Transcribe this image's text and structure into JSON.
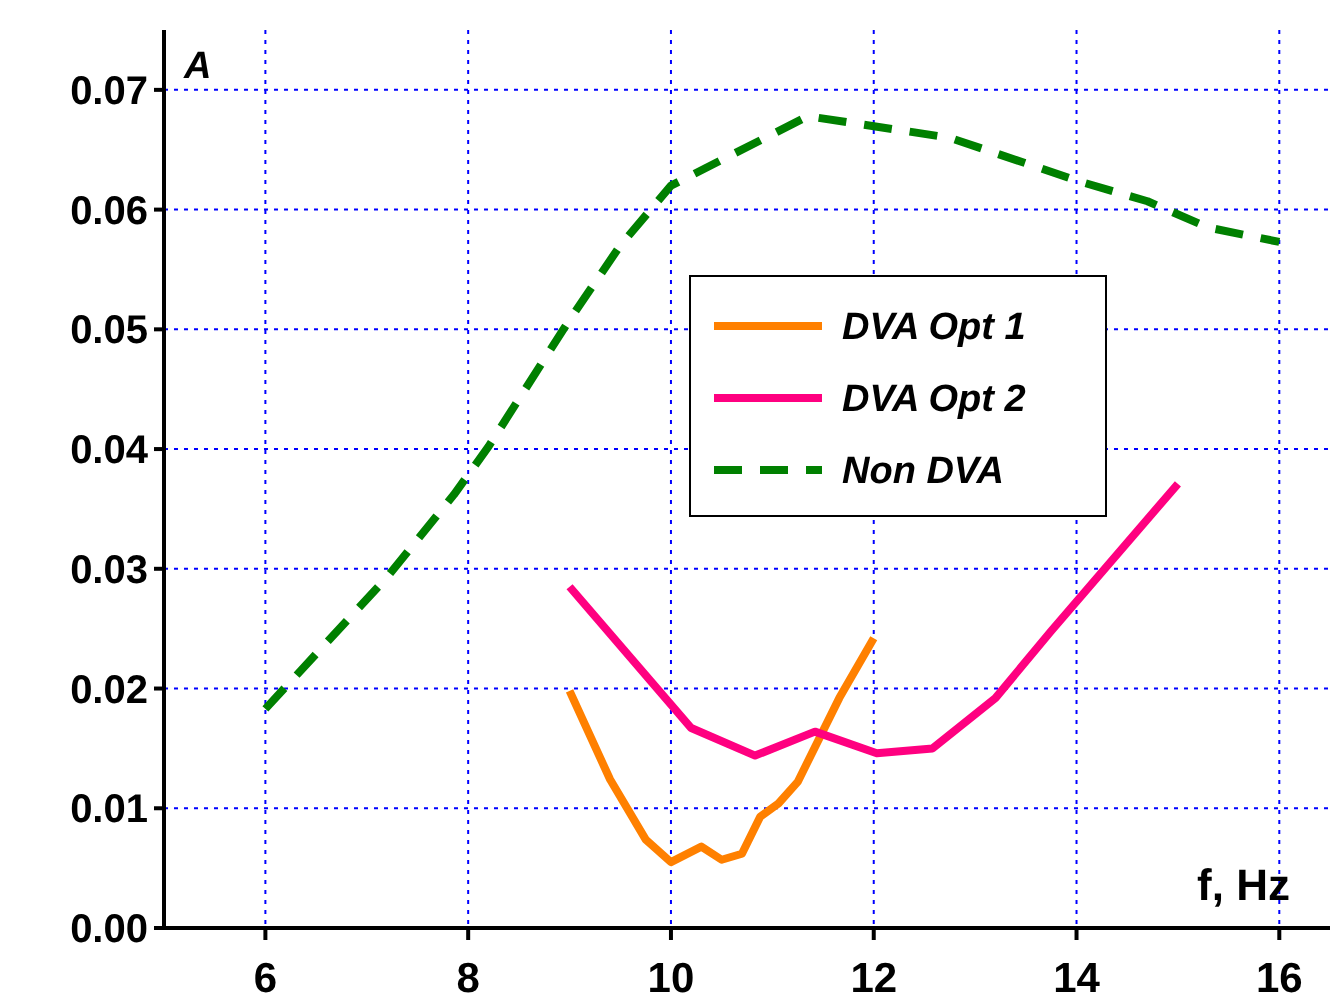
{
  "chart_data": {
    "type": "line",
    "xlabel": "f, Hz",
    "ylabel": "A",
    "xlim": [
      5,
      16.5
    ],
    "ylim": [
      0,
      0.075
    ],
    "xticks": [
      6,
      8,
      10,
      12,
      14,
      16
    ],
    "yticks": [
      {
        "value": 0,
        "label": "0.00"
      },
      {
        "value": 0.01,
        "label": "0.01"
      },
      {
        "value": 0.02,
        "label": "0.02"
      },
      {
        "value": 0.03,
        "label": "0.03"
      },
      {
        "value": 0.04,
        "label": "0.04"
      },
      {
        "value": 0.05,
        "label": "0.05"
      },
      {
        "value": 0.06,
        "label": "0.06"
      },
      {
        "value": 0.07,
        "label": "0.07"
      }
    ],
    "grid": true,
    "legend": "right",
    "series": [
      {
        "name": "DVA Opt 1",
        "color": "#ff8000",
        "line_style": "solid",
        "x": [
          9,
          9.4,
          9.75,
          10,
          10.3,
          10.5,
          10.7,
          10.88,
          11.06,
          11.25,
          11.66,
          12
        ],
        "values": [
          0.0198,
          0.0124,
          0.0074,
          0.0055,
          0.0068,
          0.0057,
          0.0062,
          0.0093,
          0.0104,
          0.0122,
          0.0192,
          0.0242
        ]
      },
      {
        "name": "DVA Opt 2",
        "color": "#ff0080",
        "line_style": "solid",
        "x": [
          9,
          10.2,
          10.83,
          11.42,
          12.03,
          12.58,
          13.2,
          13.75,
          15
        ],
        "values": [
          0.0285,
          0.0167,
          0.0144,
          0.0164,
          0.0146,
          0.015,
          0.0192,
          0.0248,
          0.0371
        ]
      },
      {
        "name": "Non DVA",
        "color": "#008000",
        "line_style": "dashed",
        "x": [
          6,
          7.2,
          7.86,
          8.2,
          9,
          9.5,
          10,
          11.35,
          12.75,
          14.05,
          14.7,
          15.3,
          16
        ],
        "values": [
          0.0183,
          0.0293,
          0.0362,
          0.0402,
          0.0508,
          0.057,
          0.062,
          0.0678,
          0.066,
          0.0623,
          0.0607,
          0.0585,
          0.0573
        ]
      }
    ]
  }
}
